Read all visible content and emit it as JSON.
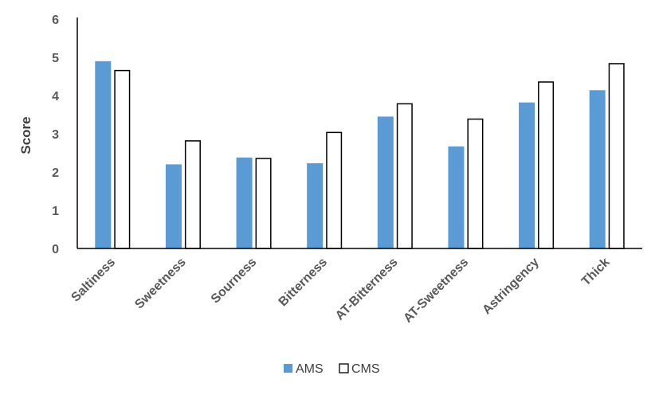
{
  "chart_data": {
    "type": "bar",
    "title": "",
    "xlabel": "",
    "ylabel": "Score",
    "ylim": [
      0,
      6
    ],
    "yticks": [
      0,
      1,
      2,
      3,
      4,
      5,
      6
    ],
    "grid": false,
    "legend_position": "bottom",
    "categories": [
      "Saltiness",
      "Sweetness",
      "Sourness",
      "Bitterness",
      "AT-Bitterness",
      "AT-Sweetness",
      "Astringency",
      "Thick"
    ],
    "series": [
      {
        "name": "AMS",
        "color": "#5b9bd5",
        "style": "filled",
        "values": [
          4.9,
          2.2,
          2.38,
          2.23,
          3.45,
          2.67,
          3.82,
          4.14
        ]
      },
      {
        "name": "CMS",
        "color": "#ffffff",
        "edge_color": "#000000",
        "style": "outlined",
        "values": [
          4.67,
          2.83,
          2.37,
          3.05,
          3.8,
          3.4,
          4.37,
          4.85
        ]
      }
    ]
  }
}
